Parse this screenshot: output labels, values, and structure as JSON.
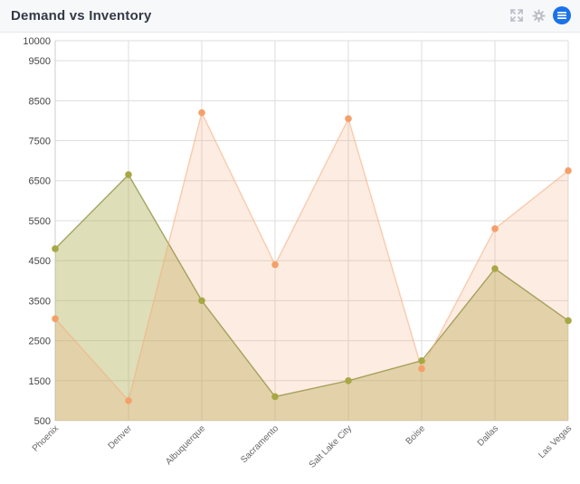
{
  "header": {
    "title": "Demand vs Inventory",
    "icons": [
      "expand-icon",
      "gear-icon",
      "menu-icon"
    ],
    "accent_color": "#1a73e8"
  },
  "colors": {
    "series_1": "#a7a845",
    "series_2": "#f5a06a",
    "grid": "#dddddd",
    "axis_text": "#555555"
  },
  "chart_data": {
    "type": "area",
    "categories": [
      "Phoenix",
      "Denver",
      "Albuquerque",
      "Sacramento",
      "Salt Lake City",
      "Boise",
      "Dallas",
      "Las Vegas"
    ],
    "series": [
      {
        "values": [
          4800,
          6650,
          3500,
          1100,
          1500,
          2000,
          4300,
          3000
        ]
      },
      {
        "values": [
          3050,
          1000,
          8200,
          4400,
          8050,
          1800,
          5300,
          6750
        ]
      }
    ],
    "y_ticks": [
      500,
      1500,
      2500,
      3500,
      4500,
      5500,
      6500,
      7500,
      8500,
      9500,
      10000
    ],
    "ylim": [
      500,
      10000
    ],
    "grid": true,
    "title": "",
    "xlabel": "",
    "ylabel": ""
  }
}
